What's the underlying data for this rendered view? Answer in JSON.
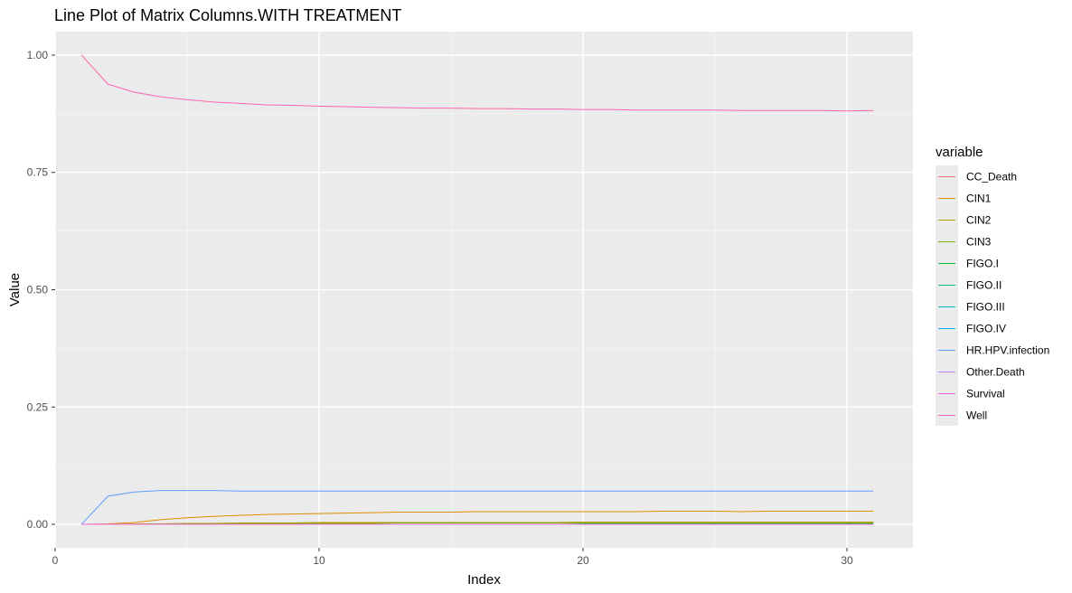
{
  "chart_data": {
    "type": "line",
    "title": "Line Plot of Matrix Columns.WITH TREATMENT",
    "xlabel": "Index",
    "ylabel": "Value",
    "xlim": [
      0,
      32.5
    ],
    "ylim": [
      -0.05,
      1.05
    ],
    "x_ticks": [
      0,
      10,
      20,
      30
    ],
    "x_tick_labels": [
      "0",
      "10",
      "20",
      "30"
    ],
    "y_ticks": [
      0,
      0.25,
      0.5,
      0.75,
      1.0
    ],
    "y_tick_labels": [
      "0.00",
      "0.25",
      "0.50",
      "0.75",
      "1.00"
    ],
    "grid": true,
    "legend_position": "right",
    "legend_title": "variable",
    "x": [
      1,
      2,
      3,
      4,
      5,
      6,
      7,
      8,
      9,
      10,
      11,
      12,
      13,
      14,
      15,
      16,
      17,
      18,
      19,
      20,
      21,
      22,
      23,
      24,
      25,
      26,
      27,
      28,
      29,
      30,
      31
    ],
    "series": [
      {
        "name": "CC_Death",
        "color": "#F8766D",
        "values": [
          0,
          0,
          0,
          0,
          0,
          0,
          0,
          0,
          0,
          0,
          0,
          0,
          0,
          0,
          0,
          0,
          0,
          0,
          0,
          0,
          0,
          0,
          0,
          0,
          0,
          0,
          0,
          0,
          0,
          0,
          0
        ]
      },
      {
        "name": "CIN1",
        "color": "#DE8C00",
        "values": [
          0,
          0.001,
          0.004,
          0.01,
          0.014,
          0.017,
          0.019,
          0.021,
          0.022,
          0.023,
          0.024,
          0.025,
          0.026,
          0.026,
          0.026,
          0.027,
          0.027,
          0.027,
          0.027,
          0.027,
          0.027,
          0.027,
          0.028,
          0.028,
          0.028,
          0.027,
          0.028,
          0.028,
          0.028,
          0.028,
          0.028
        ]
      },
      {
        "name": "CIN2",
        "color": "#B79F00",
        "values": [
          0,
          0,
          0.001,
          0.001,
          0.002,
          0.002,
          0.003,
          0.003,
          0.003,
          0.004,
          0.004,
          0.004,
          0.004,
          0.004,
          0.004,
          0.004,
          0.004,
          0.004,
          0.004,
          0.005,
          0.005,
          0.005,
          0.005,
          0.005,
          0.005,
          0.005,
          0.005,
          0.005,
          0.005,
          0.005,
          0.005
        ]
      },
      {
        "name": "CIN3",
        "color": "#7CAE00",
        "values": [
          0,
          0,
          0,
          0.001,
          0.001,
          0.001,
          0.002,
          0.002,
          0.002,
          0.002,
          0.002,
          0.002,
          0.003,
          0.003,
          0.003,
          0.003,
          0.003,
          0.003,
          0.003,
          0.003,
          0.003,
          0.003,
          0.003,
          0.003,
          0.003,
          0.003,
          0.003,
          0.003,
          0.003,
          0.003,
          0.003
        ]
      },
      {
        "name": "FIGO.I",
        "color": "#00BA38",
        "values": [
          0,
          0,
          0,
          0,
          0,
          0,
          0,
          0,
          0,
          0,
          0,
          0,
          0,
          0,
          0,
          0,
          0,
          0,
          0,
          0.001,
          0.001,
          0.001,
          0.001,
          0.001,
          0.001,
          0.001,
          0.001,
          0.001,
          0.001,
          0.001,
          0.001
        ]
      },
      {
        "name": "FIGO.II",
        "color": "#00C08B",
        "values": [
          0,
          0,
          0,
          0,
          0,
          0,
          0,
          0,
          0,
          0,
          0,
          0,
          0,
          0,
          0,
          0,
          0,
          0,
          0,
          0,
          0,
          0,
          0,
          0,
          0,
          0,
          0,
          0,
          0,
          0,
          0
        ]
      },
      {
        "name": "FIGO.III",
        "color": "#00BFC4",
        "values": [
          0,
          0,
          0,
          0,
          0,
          0,
          0,
          0,
          0,
          0,
          0,
          0,
          0,
          0,
          0,
          0,
          0,
          0,
          0,
          0,
          0,
          0,
          0,
          0,
          0,
          0,
          0,
          0,
          0,
          0,
          0
        ]
      },
      {
        "name": "FIGO.IV",
        "color": "#00B4F0",
        "values": [
          0,
          0,
          0,
          0,
          0,
          0,
          0,
          0,
          0,
          0,
          0,
          0,
          0,
          0,
          0,
          0,
          0,
          0,
          0,
          0,
          0,
          0,
          0,
          0,
          0,
          0,
          0,
          0,
          0,
          0,
          0
        ]
      },
      {
        "name": "HR.HPV.infection",
        "color": "#619CFF",
        "values": [
          0,
          0.06,
          0.069,
          0.072,
          0.072,
          0.072,
          0.071,
          0.071,
          0.071,
          0.071,
          0.071,
          0.071,
          0.071,
          0.071,
          0.071,
          0.071,
          0.071,
          0.071,
          0.071,
          0.071,
          0.071,
          0.071,
          0.071,
          0.071,
          0.071,
          0.071,
          0.071,
          0.071,
          0.071,
          0.071,
          0.071
        ]
      },
      {
        "name": "Other.Death",
        "color": "#C77CFF",
        "values": [
          0,
          0,
          0,
          0,
          0,
          0,
          0,
          0,
          0,
          0,
          0,
          0,
          0,
          0,
          0,
          0,
          0,
          0,
          0,
          0,
          0,
          0,
          0,
          0,
          0,
          0,
          0,
          0,
          0,
          0,
          0
        ]
      },
      {
        "name": "Survival",
        "color": "#F564E3",
        "values": [
          0,
          0,
          0,
          0,
          0,
          0,
          0,
          0,
          0,
          0,
          0,
          0,
          0,
          0,
          0,
          0,
          0,
          0,
          0,
          0,
          0,
          0,
          0,
          0,
          0,
          0,
          0,
          0,
          0,
          0,
          0
        ]
      },
      {
        "name": "Well",
        "color": "#FF64B0",
        "values": [
          1.0,
          0.938,
          0.921,
          0.911,
          0.905,
          0.9,
          0.897,
          0.894,
          0.893,
          0.891,
          0.89,
          0.889,
          0.888,
          0.887,
          0.887,
          0.886,
          0.886,
          0.885,
          0.885,
          0.884,
          0.884,
          0.883,
          0.883,
          0.883,
          0.883,
          0.882,
          0.882,
          0.882,
          0.882,
          0.881,
          0.882
        ]
      }
    ]
  }
}
